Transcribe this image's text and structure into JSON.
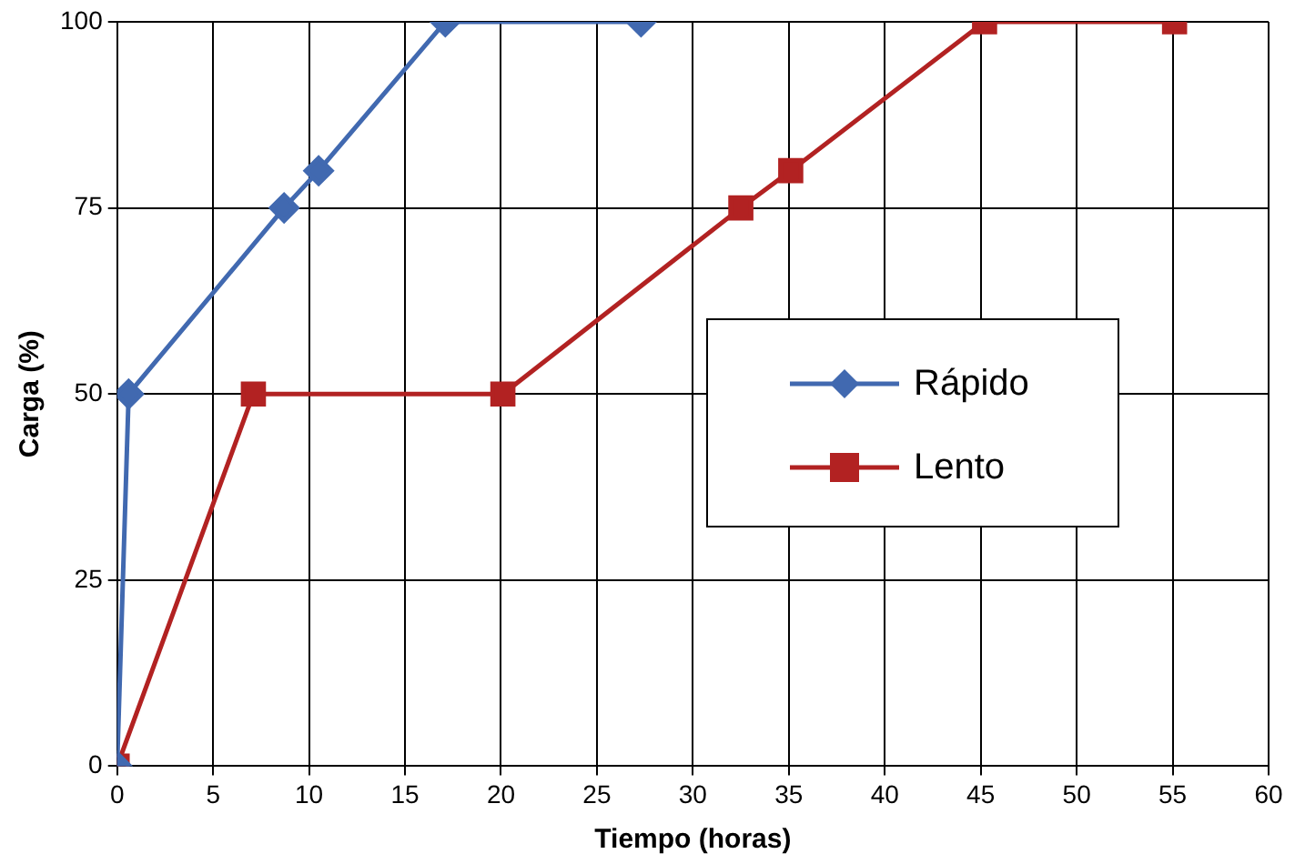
{
  "chart_data": {
    "type": "line",
    "xlabel": "Tiempo (horas)",
    "ylabel": "Carga (%)",
    "xlim": [
      0,
      60
    ],
    "xticks": [
      0,
      5,
      10,
      15,
      20,
      25,
      30,
      35,
      40,
      45,
      50,
      55,
      60
    ],
    "ylim": [
      0,
      100
    ],
    "yticks": [
      0,
      25,
      50,
      75,
      100
    ],
    "grid": true,
    "legend": "right",
    "line_style": "solid",
    "series": [
      {
        "name": "Rápido",
        "color": "#4169b0",
        "marker": "diamond",
        "x": [
          0,
          0.6,
          8.7,
          10.5,
          17.1,
          27.3
        ],
        "values": [
          0,
          50,
          75,
          80,
          100,
          100
        ]
      },
      {
        "name": "Lento",
        "color": "#b22222",
        "marker": "square",
        "x": [
          0,
          7.1,
          20.1,
          32.5,
          35.1,
          45.2,
          55.1
        ],
        "values": [
          0,
          50,
          50,
          75,
          80,
          100,
          100
        ]
      }
    ]
  }
}
